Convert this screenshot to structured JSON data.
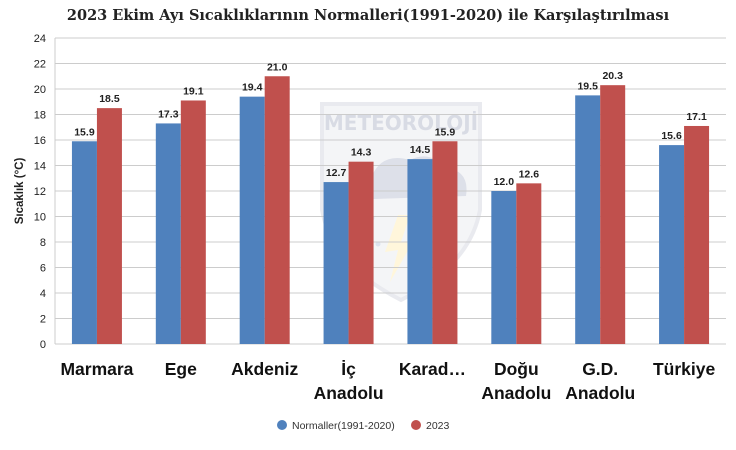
{
  "chart_data": {
    "type": "bar",
    "title": "2023 Ekim Ayı Sıcaklıklarının Normalleri(1991-2020) ile Karşılaştırılması",
    "xlabel": "",
    "ylabel": "Sıcaklık (°C)",
    "ylim": [
      0,
      24
    ],
    "yticks": [
      "0",
      "2",
      "4",
      "6",
      "8",
      "10",
      "12",
      "14",
      "16",
      "18",
      "20",
      "22",
      "24"
    ],
    "categories": [
      [
        "Marmara"
      ],
      [
        "Ege"
      ],
      [
        "Akdeniz"
      ],
      [
        "İç",
        "Anadolu"
      ],
      [
        "Karad…"
      ],
      [
        "Doğu",
        "Anadolu"
      ],
      [
        "G.D.",
        "Anadolu"
      ],
      [
        "Türkiye"
      ]
    ],
    "series": [
      {
        "name": "Normaller(1991-2020)",
        "color": "#4f81bd",
        "values": [
          15.9,
          17.3,
          19.4,
          12.7,
          14.5,
          12.0,
          19.5,
          15.6
        ]
      },
      {
        "name": "2023",
        "color": "#c0504d",
        "values": [
          18.5,
          19.1,
          21.0,
          14.3,
          15.9,
          12.6,
          20.3,
          17.1
        ]
      }
    ],
    "data_labels": [
      [
        "15.9",
        "17.3",
        "19.4",
        "12.7",
        "14.5",
        "12.0",
        "19.5",
        "15.6"
      ],
      [
        "18.5",
        "19.1",
        "21.0",
        "14.3",
        "15.9",
        "12.6",
        "20.3",
        "17.1"
      ]
    ],
    "grid": true,
    "legend_position": "bottom"
  },
  "watermark": {
    "text": "METEOROLOJİ",
    "icon": "meteoroloji-logo-cloud-rain-lightning-icon"
  }
}
